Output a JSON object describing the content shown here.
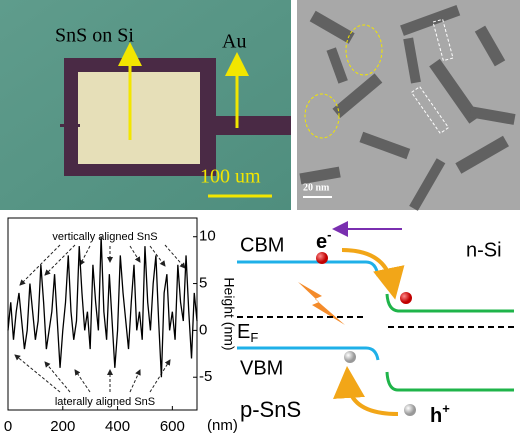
{
  "optical_image": {
    "labels": [
      "SnS on Si",
      "Au"
    ],
    "scale_bar": "100 um"
  },
  "tem_image": {
    "scale_bar": "20 nm"
  },
  "height_profile": {
    "x": [
      0,
      10,
      20,
      30,
      40,
      50,
      60,
      70,
      80,
      90,
      100,
      110,
      120,
      130,
      140,
      150,
      160,
      170,
      180,
      190,
      200,
      210,
      220,
      230,
      240,
      250,
      260,
      270,
      280,
      290,
      300,
      310,
      320,
      330,
      340,
      350,
      360,
      370,
      380,
      390,
      400,
      410,
      420,
      430,
      440,
      450,
      460,
      470,
      480,
      490,
      500,
      510,
      520,
      530,
      540,
      550,
      560,
      570,
      580,
      590,
      600,
      610,
      620,
      630,
      640,
      650,
      660,
      670,
      680,
      690
    ],
    "values": [
      0,
      3,
      -1,
      2,
      4,
      1,
      -2,
      0,
      5,
      2,
      -1,
      1,
      7,
      3,
      -2,
      0,
      2,
      6,
      1,
      -4,
      0,
      3,
      8,
      2,
      -1,
      1,
      9,
      4,
      0,
      2,
      -2,
      7,
      3,
      0,
      10,
      2,
      -1,
      6,
      1,
      -4,
      0,
      8,
      4,
      1,
      -2,
      3,
      7,
      0,
      2,
      -1,
      9,
      3,
      0,
      5,
      8,
      1,
      -5,
      4,
      6,
      0,
      2,
      -1,
      7,
      3,
      1,
      8,
      2,
      -3,
      4,
      1
    ],
    "xlim": [
      0,
      690
    ],
    "ylim": [
      -8.5,
      12
    ],
    "xticks": [
      0,
      200,
      400,
      600
    ],
    "yticks": [
      -5,
      0,
      5,
      10
    ],
    "x_unit": "(nm)",
    "y_label": "Height (nm)",
    "annotations": [
      "vertically aligned SnS",
      "laterally aligned SnS"
    ]
  },
  "band_diagram": {
    "cbm": "CBM",
    "electron": "e",
    "electron_sign": "-",
    "n_side": "n-Si",
    "ef": "E",
    "ef_sub": "F",
    "vbm": "VBM",
    "hole": "h",
    "hole_sign": "+",
    "p_side": "p-SnS"
  }
}
